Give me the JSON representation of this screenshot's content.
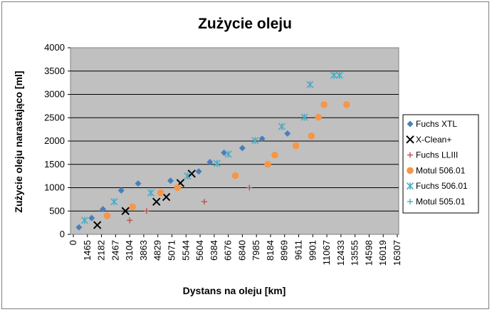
{
  "chart_data": {
    "type": "scatter",
    "title": "Zużycie oleju",
    "xlabel": "Dystans na oleju [km]",
    "ylabel": "Zużycie oleju narastająco [ml]",
    "ylim": [
      0,
      4000
    ],
    "yticks": [
      "0",
      "500",
      "1000",
      "1500",
      "2000",
      "2500",
      "3000",
      "3500",
      "4000"
    ],
    "x_tick_labels": [
      "0",
      "1465",
      "2182",
      "2467",
      "3104",
      "3863",
      "4829",
      "5071",
      "5544",
      "5604",
      "6384",
      "6676",
      "6840",
      "7985",
      "8184",
      "8969",
      "9611",
      "9901",
      "11067",
      "12433",
      "13555",
      "14598",
      "16019",
      "16307"
    ],
    "x_axis_note": "category axis – x is the category position index",
    "grid": true,
    "legend_position": "right",
    "series": [
      {
        "name": "Fuchs XTL",
        "color": "#4a7ebb",
        "marker": "diamond",
        "points": [
          [
            0.4,
            150
          ],
          [
            1.3,
            350
          ],
          [
            2.1,
            540
          ],
          [
            3.4,
            940
          ],
          [
            4.6,
            1090
          ],
          [
            6.9,
            1150
          ],
          [
            8.9,
            1350
          ],
          [
            9.7,
            1550
          ],
          [
            10.7,
            1750
          ],
          [
            12.0,
            1850
          ],
          [
            13.4,
            2050
          ],
          [
            15.2,
            2160
          ]
        ]
      },
      {
        "name": "X-Clean+",
        "color": "#000000",
        "marker": "x",
        "points": [
          [
            1.7,
            200
          ],
          [
            3.7,
            500
          ],
          [
            5.9,
            700
          ],
          [
            6.6,
            800
          ],
          [
            7.6,
            1100
          ],
          [
            8.4,
            1300
          ]
        ]
      },
      {
        "name": "Fuchs LLIII",
        "color": "#c0504d",
        "marker": "plus",
        "points": [
          [
            4.0,
            300
          ],
          [
            5.2,
            500
          ],
          [
            9.3,
            700
          ],
          [
            12.5,
            1000
          ]
        ]
      },
      {
        "name": "Motul 506.01",
        "color": "#f79646",
        "marker": "circle",
        "points": [
          [
            2.4,
            400
          ],
          [
            4.2,
            590
          ],
          [
            6.2,
            890
          ],
          [
            7.4,
            1000
          ],
          [
            11.5,
            1260
          ],
          [
            13.8,
            1500
          ],
          [
            14.3,
            1700
          ],
          [
            15.8,
            1900
          ],
          [
            16.9,
            2110
          ],
          [
            17.4,
            2510
          ],
          [
            17.8,
            2780
          ],
          [
            19.4,
            2780
          ]
        ]
      },
      {
        "name": "Fuchs 506.01",
        "color": "#4bacc6",
        "marker": "star",
        "points": [
          [
            0.8,
            300
          ],
          [
            2.9,
            700
          ],
          [
            5.5,
            890
          ],
          [
            8.1,
            1250
          ],
          [
            10.2,
            1520
          ],
          [
            11.0,
            1720
          ],
          [
            12.9,
            2010
          ],
          [
            14.8,
            2310
          ],
          [
            16.4,
            2510
          ],
          [
            16.8,
            3210
          ],
          [
            18.5,
            3410
          ],
          [
            18.9,
            3410
          ]
        ]
      },
      {
        "name": "Motul 505.01",
        "color": "#4bacc6",
        "marker": "plus",
        "points": []
      }
    ]
  }
}
